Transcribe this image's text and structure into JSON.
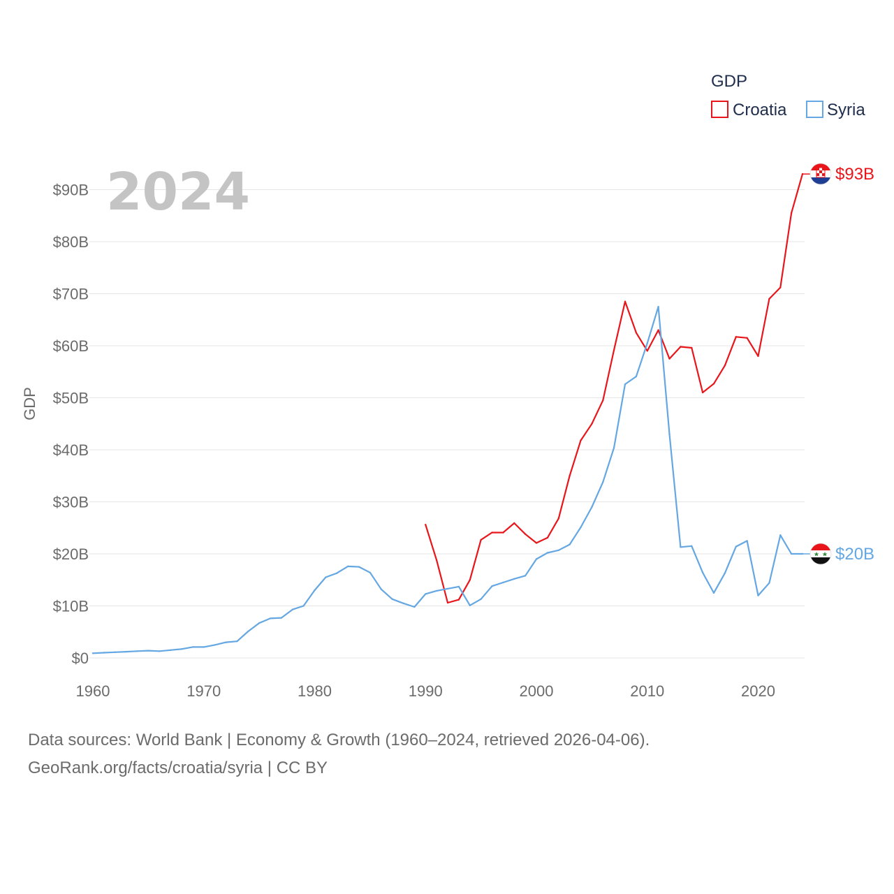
{
  "chart_data": {
    "type": "line",
    "year_label": "2024",
    "ylabel": "GDP",
    "legend": {
      "title": "GDP",
      "position": "top-right"
    },
    "ylim": [
      0,
      90
    ],
    "xlim": [
      1960,
      2024
    ],
    "y_ticks": [
      {
        "value": 0,
        "label": "$0"
      },
      {
        "value": 10,
        "label": "$10B"
      },
      {
        "value": 20,
        "label": "$20B"
      },
      {
        "value": 30,
        "label": "$30B"
      },
      {
        "value": 40,
        "label": "$40B"
      },
      {
        "value": 50,
        "label": "$50B"
      },
      {
        "value": 60,
        "label": "$60B"
      },
      {
        "value": 70,
        "label": "$70B"
      },
      {
        "value": 80,
        "label": "$80B"
      },
      {
        "value": 90,
        "label": "$90B"
      }
    ],
    "x_ticks": [
      {
        "value": 1960,
        "label": "1960"
      },
      {
        "value": 1970,
        "label": "1970"
      },
      {
        "value": 1980,
        "label": "1980"
      },
      {
        "value": 1990,
        "label": "1990"
      },
      {
        "value": 2000,
        "label": "2000"
      },
      {
        "value": 2010,
        "label": "2010"
      },
      {
        "value": 2020,
        "label": "2020"
      }
    ],
    "series": [
      {
        "name": "Croatia",
        "color": "#e8161b",
        "end_label": "$93B",
        "flag": "croatia-flag",
        "points": [
          [
            1990,
            25.6
          ],
          [
            1991,
            18.8
          ],
          [
            1992,
            10.6
          ],
          [
            1993,
            11.2
          ],
          [
            1994,
            15.0
          ],
          [
            1995,
            22.7
          ],
          [
            1996,
            24.1
          ],
          [
            1997,
            24.1
          ],
          [
            1998,
            25.9
          ],
          [
            1999,
            23.8
          ],
          [
            2000,
            22.1
          ],
          [
            2001,
            23.1
          ],
          [
            2002,
            26.8
          ],
          [
            2003,
            35.0
          ],
          [
            2004,
            41.8
          ],
          [
            2005,
            45.0
          ],
          [
            2006,
            49.5
          ],
          [
            2007,
            59.2
          ],
          [
            2008,
            68.5
          ],
          [
            2009,
            62.5
          ],
          [
            2010,
            59.0
          ],
          [
            2011,
            63.0
          ],
          [
            2012,
            57.5
          ],
          [
            2013,
            59.8
          ],
          [
            2014,
            59.6
          ],
          [
            2015,
            51.0
          ],
          [
            2016,
            52.7
          ],
          [
            2017,
            56.2
          ],
          [
            2018,
            61.7
          ],
          [
            2019,
            61.5
          ],
          [
            2020,
            58.0
          ],
          [
            2021,
            69.0
          ],
          [
            2022,
            71.2
          ],
          [
            2023,
            85.5
          ],
          [
            2024,
            93.0
          ]
        ]
      },
      {
        "name": "Syria",
        "color": "#64a7e2",
        "end_label": "$20B",
        "flag": "syria-flag",
        "points": [
          [
            1960,
            0.9
          ],
          [
            1961,
            1.0
          ],
          [
            1962,
            1.1
          ],
          [
            1963,
            1.2
          ],
          [
            1964,
            1.3
          ],
          [
            1965,
            1.4
          ],
          [
            1966,
            1.3
          ],
          [
            1967,
            1.5
          ],
          [
            1968,
            1.7
          ],
          [
            1969,
            2.1
          ],
          [
            1970,
            2.1
          ],
          [
            1971,
            2.5
          ],
          [
            1972,
            3.0
          ],
          [
            1973,
            3.2
          ],
          [
            1974,
            5.1
          ],
          [
            1975,
            6.7
          ],
          [
            1976,
            7.6
          ],
          [
            1977,
            7.7
          ],
          [
            1978,
            9.3
          ],
          [
            1979,
            10.0
          ],
          [
            1980,
            13.0
          ],
          [
            1981,
            15.5
          ],
          [
            1982,
            16.3
          ],
          [
            1983,
            17.6
          ],
          [
            1984,
            17.5
          ],
          [
            1985,
            16.4
          ],
          [
            1986,
            13.2
          ],
          [
            1987,
            11.3
          ],
          [
            1988,
            10.5
          ],
          [
            1989,
            9.8
          ],
          [
            1990,
            12.3
          ],
          [
            1991,
            12.9
          ],
          [
            1992,
            13.3
          ],
          [
            1993,
            13.7
          ],
          [
            1994,
            10.1
          ],
          [
            1995,
            11.3
          ],
          [
            1996,
            13.8
          ],
          [
            1997,
            14.5
          ],
          [
            1998,
            15.2
          ],
          [
            1999,
            15.8
          ],
          [
            2000,
            19.0
          ],
          [
            2001,
            20.2
          ],
          [
            2002,
            20.7
          ],
          [
            2003,
            21.8
          ],
          [
            2004,
            25.1
          ],
          [
            2005,
            29.0
          ],
          [
            2006,
            33.8
          ],
          [
            2007,
            40.4
          ],
          [
            2008,
            52.6
          ],
          [
            2009,
            54.1
          ],
          [
            2010,
            60.5
          ],
          [
            2011,
            67.5
          ],
          [
            2012,
            43.0
          ],
          [
            2013,
            21.3
          ],
          [
            2014,
            21.5
          ],
          [
            2015,
            16.4
          ],
          [
            2016,
            12.5
          ],
          [
            2017,
            16.3
          ],
          [
            2018,
            21.4
          ],
          [
            2019,
            22.5
          ],
          [
            2020,
            12.0
          ],
          [
            2021,
            14.4
          ],
          [
            2022,
            23.6
          ],
          [
            2023,
            20.0
          ],
          [
            2024,
            20.0
          ]
        ]
      }
    ]
  },
  "footer": {
    "line1": "Data sources: World Bank | Economy & Growth (1960–2024, retrieved 2026-04-06).",
    "line2": "GeoRank.org/facts/croatia/syria | CC BY"
  }
}
